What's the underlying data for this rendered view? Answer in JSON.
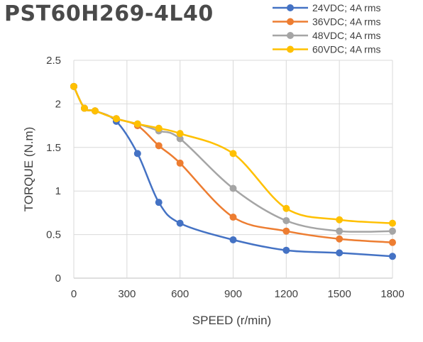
{
  "chart_data": {
    "type": "line",
    "title": "PST60H269-4L40",
    "xlabel": "SPEED (r/min)",
    "ylabel": "TORQUE (N.m)",
    "xlim": [
      0,
      1800
    ],
    "ylim": [
      0,
      2.5
    ],
    "xticks": [
      0,
      300,
      600,
      900,
      1200,
      1500,
      1800
    ],
    "yticks": [
      0,
      0.5,
      1,
      1.5,
      2,
      2.5
    ],
    "ytick_labels": [
      "0",
      "0.5",
      "1",
      "1.5",
      "2",
      "2.5"
    ],
    "grid": true,
    "legend_position": "top-right",
    "series": [
      {
        "name": "24VDC; 4A rms",
        "color": "#4472c4",
        "x": [
          0,
          60,
          120,
          240,
          360,
          480,
          600,
          900,
          1200,
          1500,
          1800
        ],
        "y": [
          2.2,
          1.95,
          1.92,
          1.8,
          1.43,
          0.87,
          0.63,
          0.44,
          0.32,
          0.29,
          0.25
        ]
      },
      {
        "name": "36VDC; 4A rms",
        "color": "#ed7d31",
        "x": [
          0,
          60,
          120,
          240,
          360,
          480,
          600,
          900,
          1200,
          1500,
          1800
        ],
        "y": [
          2.2,
          1.95,
          1.92,
          1.83,
          1.75,
          1.52,
          1.32,
          0.7,
          0.54,
          0.45,
          0.41
        ]
      },
      {
        "name": "48VDC; 4A rms",
        "color": "#a5a5a5",
        "x": [
          0,
          60,
          120,
          240,
          360,
          480,
          600,
          900,
          1200,
          1500,
          1800
        ],
        "y": [
          2.2,
          1.95,
          1.92,
          1.83,
          1.77,
          1.69,
          1.6,
          1.03,
          0.66,
          0.54,
          0.54
        ]
      },
      {
        "name": "60VDC; 4A rms",
        "color": "#ffc000",
        "x": [
          0,
          60,
          120,
          240,
          360,
          480,
          600,
          900,
          1200,
          1500,
          1800
        ],
        "y": [
          2.2,
          1.95,
          1.92,
          1.83,
          1.77,
          1.72,
          1.66,
          1.43,
          0.8,
          0.67,
          0.63
        ]
      }
    ]
  }
}
